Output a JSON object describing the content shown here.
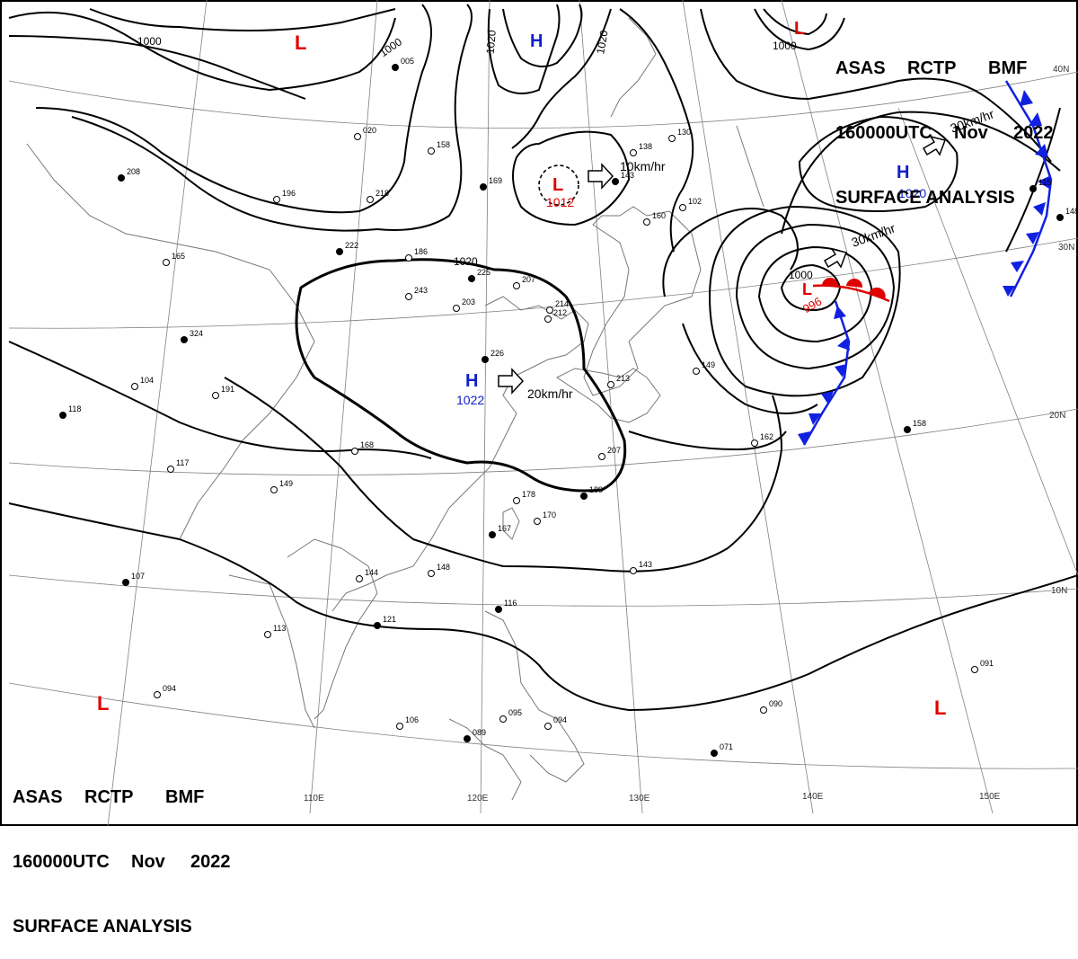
{
  "header": {
    "line1": [
      "ASAS",
      "RCTP",
      "BMF"
    ],
    "line2": [
      "160000UTC",
      "Nov",
      "2022"
    ],
    "line3": "SURFACE ANALYSIS"
  },
  "colors": {
    "high": "#1020c8",
    "low": "#e00000",
    "front_cold": "#1020e0",
    "front_warm": "#e00000",
    "isobar": "#000000",
    "coast": "#808080",
    "grid": "#808080"
  },
  "pressure_systems": [
    {
      "id": "H-china",
      "type": "H",
      "value": "1022"
    },
    {
      "id": "H-pacific",
      "type": "H",
      "value": "1020"
    },
    {
      "id": "H-north",
      "type": "H",
      "value": ""
    },
    {
      "id": "L-pacific",
      "type": "L",
      "value": "996"
    },
    {
      "id": "L-yellowsea",
      "type": "L",
      "value": "1012"
    },
    {
      "id": "L-mongolia",
      "type": "L",
      "value": ""
    },
    {
      "id": "L-northeast",
      "type": "L",
      "value": ""
    },
    {
      "id": "L-southwest",
      "type": "L",
      "value": ""
    },
    {
      "id": "L-southeast",
      "type": "L",
      "value": ""
    }
  ],
  "isobar_labels": [
    "1000",
    "1000",
    "1020",
    "1020",
    "1000",
    "1020",
    "1000"
  ],
  "motion_labels": [
    "20km/hr",
    "10km/hr",
    "30km/hr",
    "30km/hr"
  ],
  "lat_labels": [
    "40N",
    "30N",
    "20N",
    "10N"
  ],
  "lon_labels": [
    "110E",
    "120E",
    "130E",
    "140E",
    "150E"
  ],
  "station_values": [
    "208",
    "168",
    "186",
    "324",
    "104",
    "191",
    "118",
    "117",
    "149",
    "107",
    "144",
    "113",
    "121",
    "094",
    "106",
    "089",
    "095",
    "094",
    "071",
    "090",
    "091",
    "158",
    "162",
    "149",
    "189",
    "207",
    "170",
    "167",
    "143",
    "148",
    "116",
    "178",
    "213",
    "226",
    "243",
    "203",
    "225",
    "207",
    "214",
    "222",
    "196",
    "218",
    "169",
    "158",
    "020",
    "005",
    "165",
    "130",
    "143",
    "138",
    "102",
    "115",
    "212",
    "160",
    "148"
  ]
}
